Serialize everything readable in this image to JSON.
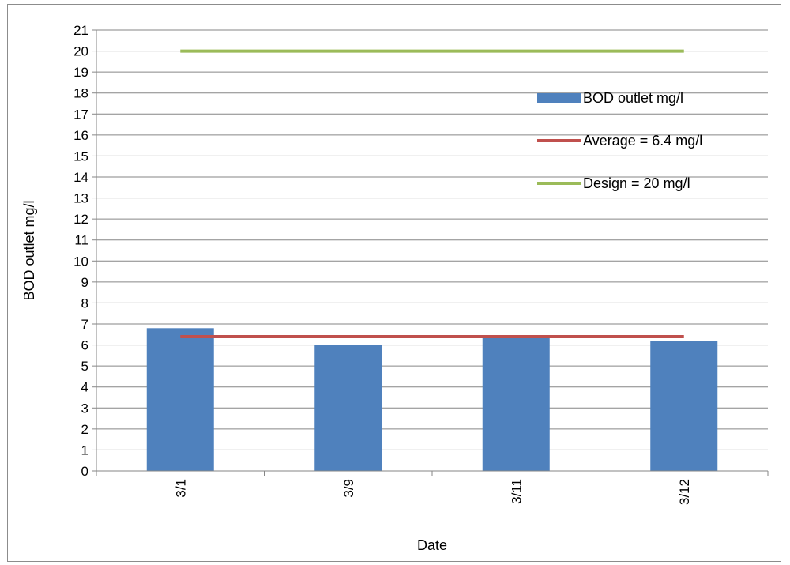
{
  "chart_data": {
    "type": "bar",
    "xlabel": "Date",
    "ylabel": "BOD outlet mg/l",
    "ylim": [
      0,
      21
    ],
    "yticks": [
      0,
      1,
      2,
      3,
      4,
      5,
      6,
      7,
      8,
      9,
      10,
      11,
      12,
      13,
      14,
      15,
      16,
      17,
      18,
      19,
      20,
      21
    ],
    "grid": true,
    "legend_position": "top-right",
    "categories": [
      "3/1",
      "3/9",
      "3/11",
      "3/12"
    ],
    "series": [
      {
        "name": "BOD outlet mg/l",
        "type": "bar",
        "color": "#4F81BD",
        "values": [
          6.8,
          6.0,
          6.4,
          6.2
        ]
      },
      {
        "name": "Average = 6.4 mg/l",
        "type": "line",
        "color": "#C0504D",
        "values": [
          6.4,
          6.4,
          6.4,
          6.4
        ]
      },
      {
        "name": "Design = 20 mg/l",
        "type": "line",
        "color": "#9BBB59",
        "values": [
          20,
          20,
          20,
          20
        ]
      }
    ]
  }
}
